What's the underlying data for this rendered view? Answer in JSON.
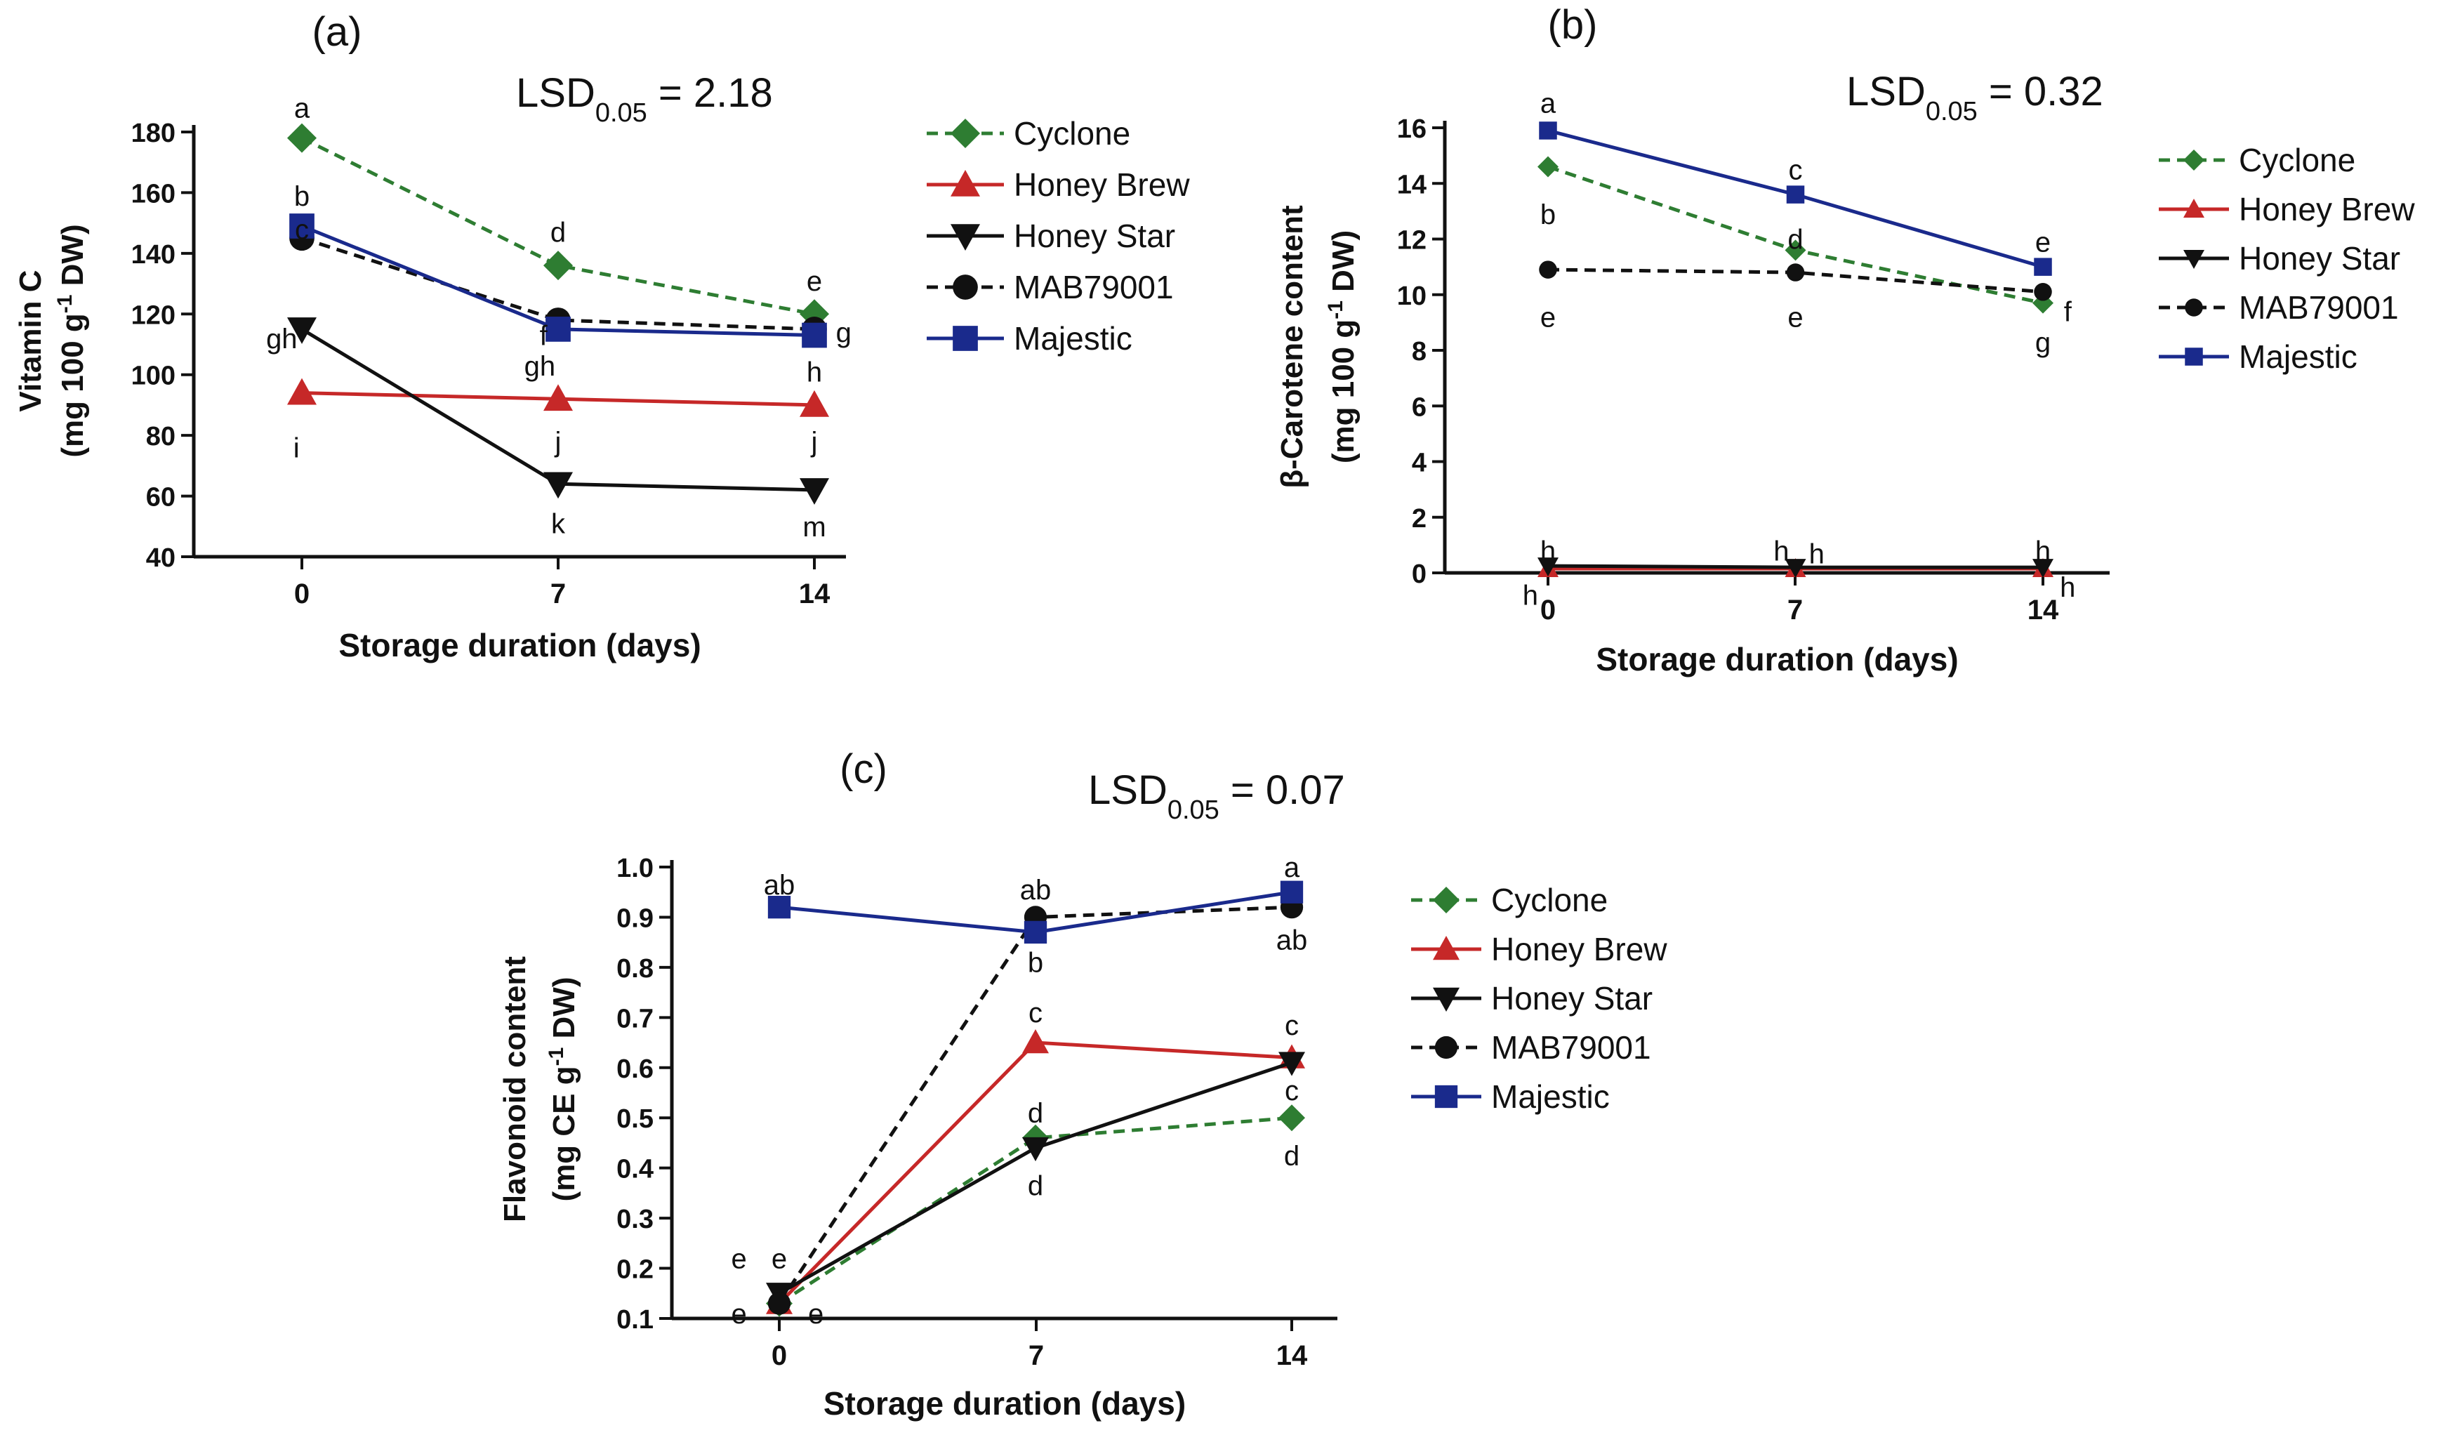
{
  "chart_data": [
    {
      "panel_label": "(a)",
      "type": "line",
      "lsd_prefix": "LSD",
      "lsd_sub": "0.05",
      "lsd_value": " = 2.18",
      "ylabel_line1": "Vitamin C",
      "ylabel_line2": "(mg 100 g",
      "ylabel_sup": "-1",
      "ylabel_line2b": " DW)",
      "xlabel": "Storage duration (days)",
      "x": [
        0,
        7,
        14
      ],
      "xticks": [
        "0",
        "7",
        "14"
      ],
      "ylim": [
        40,
        180
      ],
      "yticks": [
        "40",
        "60",
        "80",
        "100",
        "120",
        "140",
        "160",
        "180"
      ],
      "series": [
        {
          "name": "Cyclone",
          "color": "#2e7d32",
          "dash": true,
          "marker": "diamond",
          "values": [
            178,
            136,
            120
          ]
        },
        {
          "name": "Honey Brew",
          "color": "#c62828",
          "dash": false,
          "marker": "triangle-up",
          "values": [
            94,
            92,
            90
          ]
        },
        {
          "name": "Honey Star",
          "color": "#111111",
          "dash": false,
          "marker": "triangle-down",
          "values": [
            115,
            64,
            62
          ]
        },
        {
          "name": "MAB79001",
          "color": "#111111",
          "dash": true,
          "marker": "circle",
          "values": [
            145,
            118,
            115
          ]
        },
        {
          "name": "Majestic",
          "color": "#1a2a8c",
          "dash": false,
          "marker": "square",
          "values": [
            149,
            115,
            113
          ]
        }
      ],
      "letters": [
        {
          "text": "a",
          "x": 0,
          "y": 188
        },
        {
          "text": "b",
          "x": 0,
          "y": 159
        },
        {
          "text": "c",
          "x": 0,
          "y": 148
        },
        {
          "text": "gh",
          "x": -0.55,
          "y": 112
        },
        {
          "text": "i",
          "x": -0.15,
          "y": 76
        },
        {
          "text": "d",
          "x": 7,
          "y": 147
        },
        {
          "text": "f",
          "x": 6.6,
          "y": 113
        },
        {
          "text": "gh",
          "x": 6.5,
          "y": 103
        },
        {
          "text": "j",
          "x": 7,
          "y": 78
        },
        {
          "text": "k",
          "x": 7,
          "y": 51
        },
        {
          "text": "e",
          "x": 14,
          "y": 131
        },
        {
          "text": "g",
          "x": 14.8,
          "y": 114
        },
        {
          "text": "h",
          "x": 14,
          "y": 101
        },
        {
          "text": "j",
          "x": 14,
          "y": 78
        },
        {
          "text": "m",
          "x": 14,
          "y": 50
        }
      ]
    },
    {
      "panel_label": "(b)",
      "type": "line",
      "lsd_prefix": "LSD",
      "lsd_sub": "0.05",
      "lsd_value": " = 0.32",
      "ylabel_line1": "β-Carotene content",
      "ylabel_line2": "(mg 100 g",
      "ylabel_sup": "-1",
      "ylabel_line2b": " DW)",
      "xlabel": "Storage duration (days)",
      "x": [
        0,
        7,
        14
      ],
      "xticks": [
        "0",
        "7",
        "14"
      ],
      "ylim": [
        0,
        16
      ],
      "yticks": [
        "0",
        "2",
        "4",
        "6",
        "8",
        "10",
        "12",
        "14",
        "16"
      ],
      "series": [
        {
          "name": "Cyclone",
          "color": "#2e7d32",
          "dash": true,
          "marker": "diamond",
          "values": [
            14.6,
            11.6,
            9.7
          ]
        },
        {
          "name": "Honey Brew",
          "color": "#c62828",
          "dash": false,
          "marker": "triangle-up",
          "values": [
            0.15,
            0.15,
            0.15
          ]
        },
        {
          "name": "Honey Star",
          "color": "#111111",
          "dash": false,
          "marker": "triangle-down",
          "values": [
            0.25,
            0.2,
            0.2
          ]
        },
        {
          "name": "MAB79001",
          "color": "#111111",
          "dash": true,
          "marker": "circle",
          "values": [
            10.9,
            10.8,
            10.1
          ]
        },
        {
          "name": "Majestic",
          "color": "#1a2a8c",
          "dash": false,
          "marker": "square",
          "values": [
            15.9,
            13.6,
            11.0
          ]
        }
      ],
      "letters": [
        {
          "text": "a",
          "x": 0,
          "y": 16.9
        },
        {
          "text": "b",
          "x": 0,
          "y": 12.9
        },
        {
          "text": "e",
          "x": 0,
          "y": 9.2
        },
        {
          "text": "h",
          "x": 0,
          "y": 0.8
        },
        {
          "text": "h",
          "x": -0.5,
          "y": -0.8
        },
        {
          "text": "c",
          "x": 7,
          "y": 14.5
        },
        {
          "text": "d",
          "x": 7,
          "y": 12.0
        },
        {
          "text": "e",
          "x": 7,
          "y": 9.2
        },
        {
          "text": "h",
          "x": 6.6,
          "y": 0.8
        },
        {
          "text": "h",
          "x": 7.6,
          "y": 0.7
        },
        {
          "text": "e",
          "x": 14,
          "y": 11.9
        },
        {
          "text": "f",
          "x": 14.7,
          "y": 9.4
        },
        {
          "text": "g",
          "x": 14,
          "y": 8.3
        },
        {
          "text": "h",
          "x": 14,
          "y": 0.8
        },
        {
          "text": "h",
          "x": 14.7,
          "y": -0.5
        }
      ]
    },
    {
      "panel_label": "(c)",
      "type": "line",
      "lsd_prefix": "LSD",
      "lsd_sub": "0.05",
      "lsd_value": " = 0.07",
      "ylabel_line1": "Flavonoid content",
      "ylabel_line2": "(mg CE g",
      "ylabel_sup": "-1",
      "ylabel_line2b": " DW)",
      "xlabel": "Storage duration (days)",
      "x": [
        0,
        7,
        14
      ],
      "xticks": [
        "0",
        "7",
        "14"
      ],
      "ylim": [
        0.1,
        1.0
      ],
      "yticks": [
        "0.1",
        "0.2",
        "0.3",
        "0.4",
        "0.5",
        "0.6",
        "0.7",
        "0.8",
        "0.9",
        "1.0"
      ],
      "series": [
        {
          "name": "Cyclone",
          "color": "#2e7d32",
          "dash": true,
          "marker": "diamond",
          "values": [
            0.13,
            0.46,
            0.5
          ]
        },
        {
          "name": "Honey Brew",
          "color": "#c62828",
          "dash": false,
          "marker": "triangle-up",
          "values": [
            0.13,
            0.65,
            0.62
          ]
        },
        {
          "name": "Honey Star",
          "color": "#111111",
          "dash": false,
          "marker": "triangle-down",
          "values": [
            0.15,
            0.44,
            0.61
          ]
        },
        {
          "name": "MAB79001",
          "color": "#111111",
          "dash": true,
          "marker": "circle",
          "values": [
            0.13,
            0.9,
            0.92
          ]
        },
        {
          "name": "Majestic",
          "color": "#1a2a8c",
          "dash": false,
          "marker": "square",
          "values": [
            0.92,
            0.87,
            0.95
          ]
        }
      ],
      "letters": [
        {
          "text": "ab",
          "x": 0,
          "y": 0.965
        },
        {
          "text": "e",
          "x": -1.1,
          "y": 0.22
        },
        {
          "text": "e",
          "x": 0,
          "y": 0.22
        },
        {
          "text": "e",
          "x": -1.1,
          "y": 0.11
        },
        {
          "text": "e",
          "x": 1.0,
          "y": 0.11
        },
        {
          "text": "ab",
          "x": 7,
          "y": 0.955
        },
        {
          "text": "b",
          "x": 7,
          "y": 0.81
        },
        {
          "text": "c",
          "x": 7,
          "y": 0.71
        },
        {
          "text": "d",
          "x": 7,
          "y": 0.51
        },
        {
          "text": "d",
          "x": 7,
          "y": 0.365
        },
        {
          "text": "a",
          "x": 14,
          "y": 1.0
        },
        {
          "text": "ab",
          "x": 14,
          "y": 0.855
        },
        {
          "text": "c",
          "x": 14,
          "y": 0.685
        },
        {
          "text": "c",
          "x": 14,
          "y": 0.555
        },
        {
          "text": "d",
          "x": 14,
          "y": 0.425
        }
      ]
    }
  ]
}
